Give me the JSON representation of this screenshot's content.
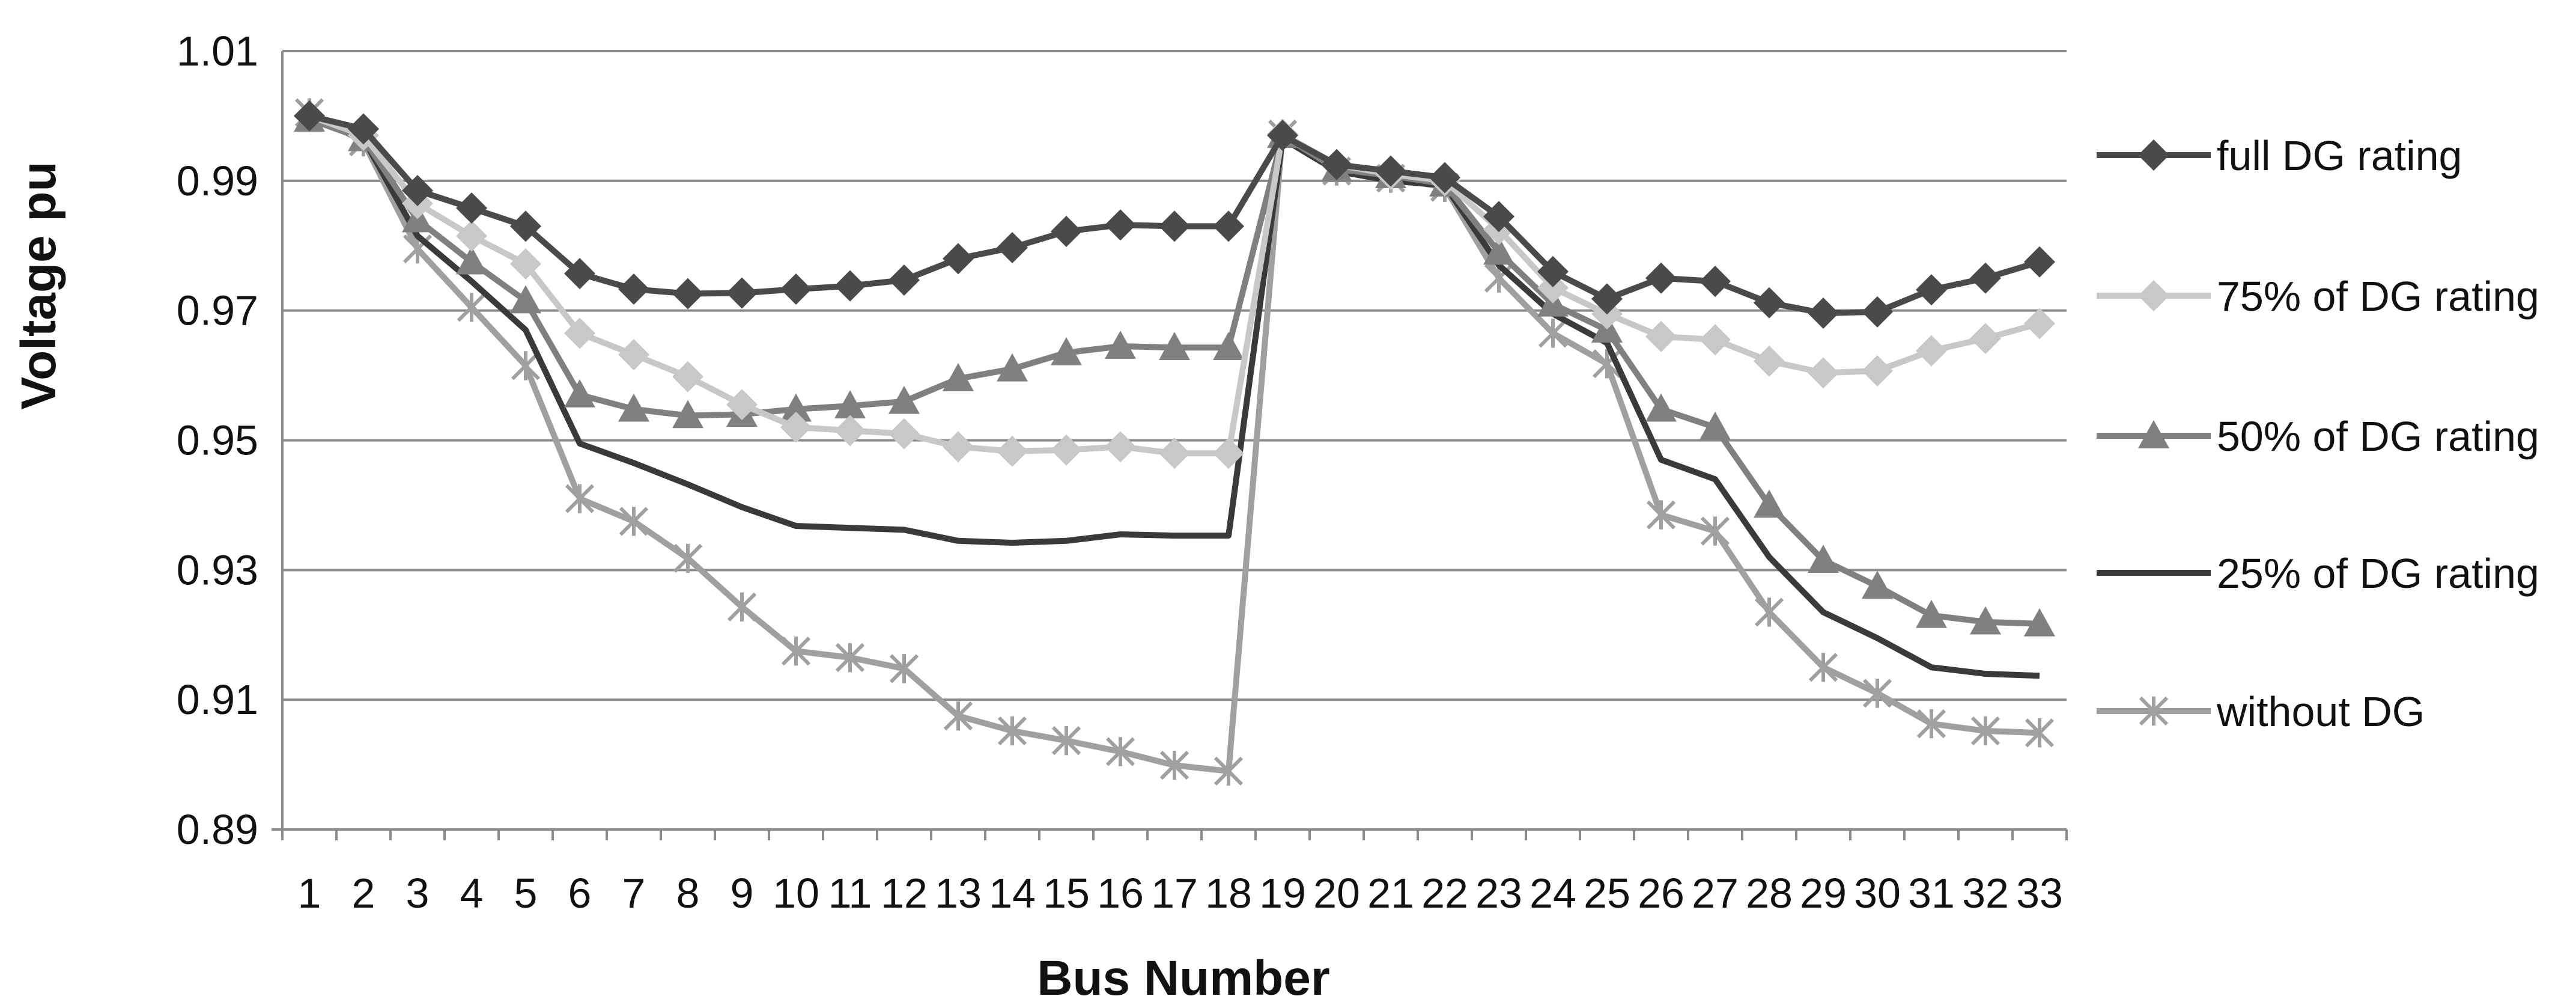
{
  "chart_data": {
    "type": "line",
    "title": "",
    "xlabel": "Bus Number",
    "ylabel": "Voltage pu",
    "ylim": [
      0.89,
      1.01
    ],
    "yticks": [
      "0.89",
      "0.91",
      "0.93",
      "0.95",
      "0.97",
      "0.99",
      "1.01"
    ],
    "grid": "horizontal",
    "legend_position": "right",
    "x": [
      1,
      2,
      3,
      4,
      5,
      6,
      7,
      8,
      9,
      10,
      11,
      12,
      13,
      14,
      15,
      16,
      17,
      18,
      19,
      20,
      21,
      22,
      23,
      24,
      25,
      26,
      27,
      28,
      29,
      30,
      31,
      32,
      33
    ],
    "series": [
      {
        "name": "full DG rating",
        "color": "#4a4a4a",
        "marker": "diamond",
        "values": [
          1.0,
          0.998,
          0.9885,
          0.9858,
          0.983,
          0.9757,
          0.9733,
          0.9726,
          0.9727,
          0.9733,
          0.9738,
          0.9747,
          0.978,
          0.9797,
          0.9822,
          0.9832,
          0.983,
          0.983,
          0.997,
          0.9925,
          0.9915,
          0.9905,
          0.9845,
          0.976,
          0.9718,
          0.975,
          0.9745,
          0.9712,
          0.9696,
          0.9698,
          0.9732,
          0.975,
          0.9775
        ]
      },
      {
        "name": "75% of DG rating",
        "color": "#c8c8c8",
        "marker": "diamond",
        "values": [
          1.0,
          0.997,
          0.9865,
          0.9815,
          0.9772,
          0.9665,
          0.9632,
          0.9598,
          0.9555,
          0.952,
          0.9515,
          0.951,
          0.949,
          0.9483,
          0.9485,
          0.949,
          0.948,
          0.948,
          0.9972,
          0.9925,
          0.991,
          0.99,
          0.9825,
          0.9735,
          0.9695,
          0.966,
          0.9655,
          0.9622,
          0.9604,
          0.9607,
          0.9638,
          0.9657,
          0.968
        ]
      },
      {
        "name": "50% of  DG rating",
        "color": "#808080",
        "marker": "triangle",
        "values": [
          0.9995,
          0.9965,
          0.984,
          0.9775,
          0.9715,
          0.957,
          0.9548,
          0.9538,
          0.954,
          0.9548,
          0.9553,
          0.956,
          0.9595,
          0.961,
          0.9635,
          0.9645,
          0.9643,
          0.9643,
          0.997,
          0.9918,
          0.9908,
          0.9895,
          0.979,
          0.971,
          0.967,
          0.9548,
          0.952,
          0.94,
          0.9315,
          0.9275,
          0.923,
          0.922,
          0.9217
        ]
      },
      {
        "name": "25% of DG rating",
        "color": "#3a3a3a",
        "marker": "none",
        "values": [
          0.9995,
          0.9965,
          0.9815,
          0.9745,
          0.967,
          0.9495,
          0.9465,
          0.9432,
          0.9397,
          0.9368,
          0.9365,
          0.9362,
          0.9345,
          0.9342,
          0.9345,
          0.9355,
          0.9353,
          0.9353,
          0.9965,
          0.9915,
          0.99,
          0.9893,
          0.977,
          0.9695,
          0.965,
          0.947,
          0.944,
          0.932,
          0.9235,
          0.9195,
          0.915,
          0.914,
          0.9137
        ]
      },
      {
        "name": "without DG",
        "color": "#a0a0a0",
        "marker": "star",
        "values": [
          1.0005,
          0.996,
          0.9795,
          0.9705,
          0.9615,
          0.941,
          0.9375,
          0.9318,
          0.9243,
          0.9175,
          0.9165,
          0.9148,
          0.9075,
          0.9052,
          0.9037,
          0.902,
          0.8999,
          0.899,
          0.9972,
          0.9915,
          0.9904,
          0.989,
          0.975,
          0.9665,
          0.9618,
          0.9385,
          0.936,
          0.9235,
          0.915,
          0.911,
          0.9063,
          0.9052,
          0.9049
        ]
      }
    ]
  }
}
